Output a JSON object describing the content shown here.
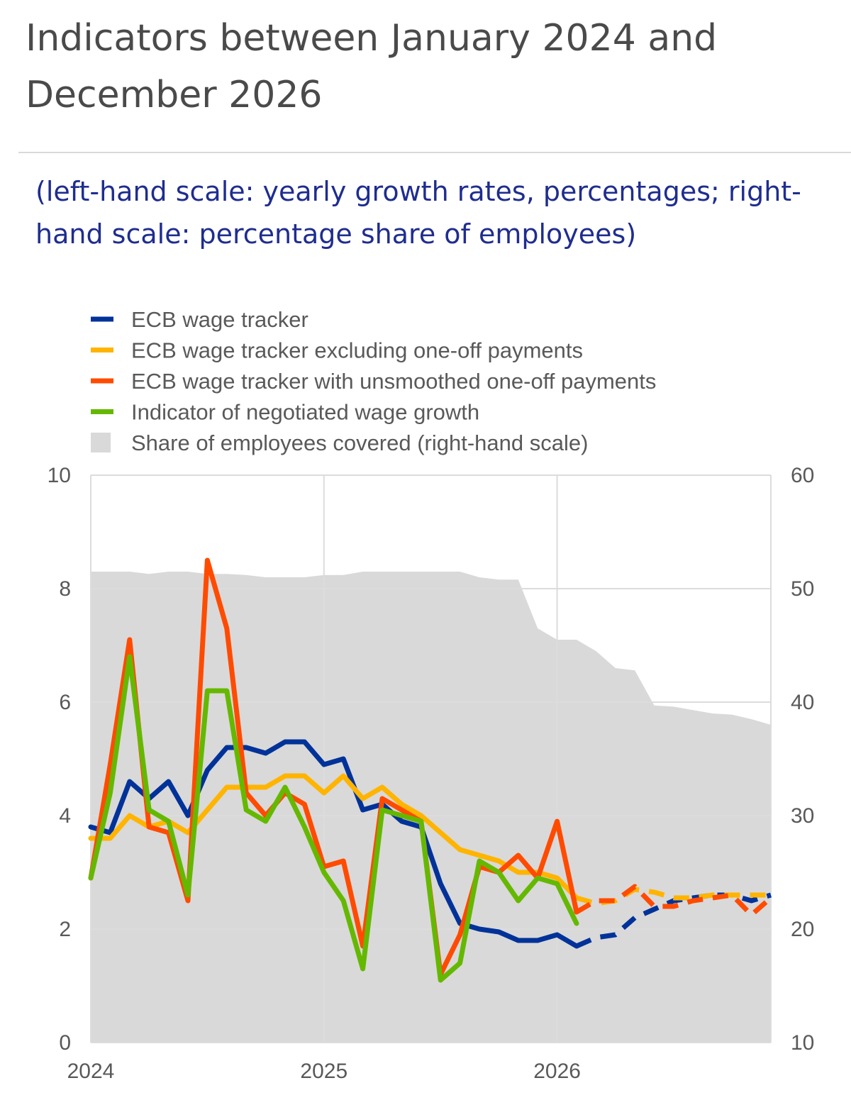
{
  "title": "Indicators between January 2024 and December 2026",
  "subtitle": "(left-hand scale: yearly growth rates, percentages; right-hand scale: percentage share of employees)",
  "chart_data": {
    "type": "line",
    "x_axis": {
      "ticks": [
        "2024",
        "2025",
        "2026"
      ],
      "range": [
        "2024-01",
        "2026-12"
      ]
    },
    "y_left": {
      "range": [
        0,
        10
      ],
      "ticks": [
        "0",
        "2",
        "4",
        "6",
        "8",
        "10"
      ]
    },
    "y_right": {
      "range": [
        10,
        60
      ],
      "ticks": [
        "10",
        "20",
        "30",
        "40",
        "50",
        "60"
      ]
    },
    "grid": true,
    "legend_position": "top",
    "months": [
      "2024-01",
      "2024-02",
      "2024-03",
      "2024-04",
      "2024-05",
      "2024-06",
      "2024-07",
      "2024-08",
      "2024-09",
      "2024-10",
      "2024-11",
      "2024-12",
      "2025-01",
      "2025-02",
      "2025-03",
      "2025-04",
      "2025-05",
      "2025-06",
      "2025-07",
      "2025-08",
      "2025-09",
      "2025-10",
      "2025-11",
      "2025-12",
      "2026-01",
      "2026-02",
      "2026-03",
      "2026-04",
      "2026-05",
      "2026-06",
      "2026-07",
      "2026-08",
      "2026-09",
      "2026-10",
      "2026-11",
      "2026-12"
    ],
    "forecast_from": "2026-02",
    "series": [
      {
        "name": "Share of employees covered (right-hand scale)",
        "axis": "right",
        "style": "area",
        "color": "#d9d9d9",
        "values": [
          51.5,
          51.5,
          51.5,
          51.3,
          51.5,
          51.5,
          51.3,
          51.3,
          51.2,
          51.0,
          51.0,
          51.0,
          51.2,
          51.2,
          51.5,
          51.5,
          51.5,
          51.5,
          51.5,
          51.5,
          51.0,
          50.8,
          50.8,
          46.5,
          45.5,
          45.5,
          44.5,
          43.0,
          42.8,
          39.7,
          39.6,
          39.3,
          39.0,
          38.9,
          38.5,
          38.0
        ]
      },
      {
        "name": "ECB wage tracker",
        "axis": "left",
        "style": "line",
        "color": "#003299",
        "values": [
          3.8,
          3.7,
          4.6,
          4.3,
          4.6,
          4.0,
          4.8,
          5.2,
          5.2,
          5.1,
          5.3,
          5.3,
          4.9,
          5.0,
          4.1,
          4.2,
          3.9,
          3.8,
          2.8,
          2.1,
          2.0,
          1.95,
          1.8,
          1.8,
          1.9,
          1.7,
          1.85,
          1.9,
          2.2,
          2.35,
          2.5,
          2.55,
          2.6,
          2.6,
          2.5,
          2.6
        ]
      },
      {
        "name": "ECB wage tracker excluding one-off payments",
        "axis": "left",
        "style": "line",
        "color": "#ffb400",
        "values": [
          3.6,
          3.6,
          4.0,
          3.8,
          3.9,
          3.7,
          4.1,
          4.5,
          4.5,
          4.5,
          4.7,
          4.7,
          4.4,
          4.7,
          4.3,
          4.5,
          4.2,
          4.0,
          3.7,
          3.4,
          3.3,
          3.2,
          3.0,
          3.0,
          2.9,
          2.55,
          2.45,
          2.5,
          2.7,
          2.65,
          2.55,
          2.55,
          2.6,
          2.6,
          2.6,
          2.6
        ]
      },
      {
        "name": "ECB wage tracker with unsmoothed one-off payments",
        "axis": "left",
        "style": "line",
        "color": "#ff4b00",
        "values": [
          2.9,
          4.9,
          7.1,
          3.8,
          3.7,
          2.5,
          8.5,
          7.3,
          4.4,
          4.0,
          4.4,
          4.2,
          3.1,
          3.2,
          1.7,
          4.3,
          4.1,
          3.9,
          1.2,
          1.9,
          3.1,
          3.0,
          3.3,
          2.9,
          3.9,
          2.3,
          2.5,
          2.5,
          2.75,
          2.4,
          2.4,
          2.5,
          2.55,
          2.6,
          2.25,
          2.55
        ]
      },
      {
        "name": "Indicator of negotiated wage growth",
        "axis": "left",
        "style": "line",
        "color": "#65b800",
        "values": [
          2.9,
          4.4,
          6.8,
          4.1,
          3.9,
          2.6,
          6.2,
          6.2,
          4.1,
          3.9,
          4.5,
          3.8,
          3.0,
          2.5,
          1.3,
          4.1,
          4.0,
          3.9,
          1.1,
          1.4,
          3.2,
          3.0,
          2.5,
          2.9,
          2.8,
          2.1,
          null,
          null,
          null,
          null,
          null,
          null,
          null,
          null,
          null,
          null
        ]
      }
    ]
  }
}
